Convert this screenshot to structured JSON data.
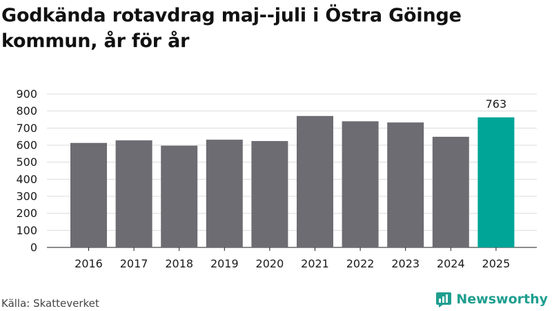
{
  "title": "Godkända rotavdrag maj--juli i Östra Göinge kommun, år för år",
  "source": "Källa: Skatteverket",
  "brand": {
    "name": "Newsworthy",
    "icon": "newsworthy-logo-icon",
    "color": "#1f9e8f"
  },
  "chart_data": {
    "type": "bar",
    "title": "Godkända rotavdrag maj--juli i Östra Göinge kommun, år för år",
    "xlabel": "",
    "ylabel": "",
    "categories": [
      "2016",
      "2017",
      "2018",
      "2019",
      "2020",
      "2021",
      "2022",
      "2023",
      "2024",
      "2025"
    ],
    "values": [
      613,
      628,
      597,
      632,
      624,
      771,
      740,
      733,
      649,
      763
    ],
    "ylim": [
      0,
      900
    ],
    "yticks": [
      0,
      100,
      200,
      300,
      400,
      500,
      600,
      700,
      800,
      900
    ],
    "grid": true,
    "legend": "none",
    "colors": {
      "default": "#6d6c72",
      "highlight": "#00a598"
    },
    "highlight_category": "2025",
    "data_labels": [
      {
        "category": "2025",
        "text": "763"
      }
    ]
  }
}
